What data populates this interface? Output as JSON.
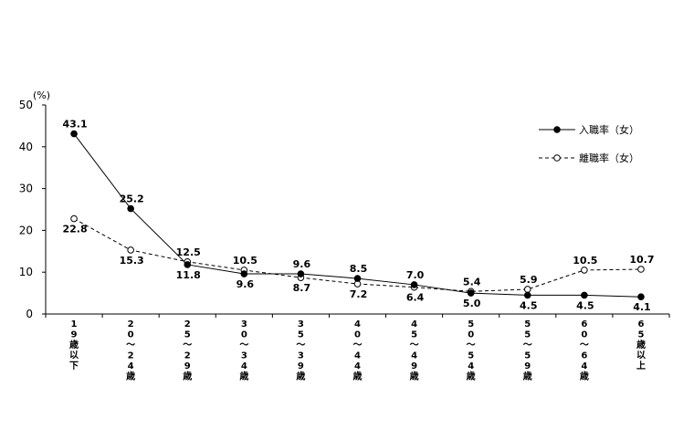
{
  "chart_data": {
    "type": "line",
    "unit_label": "(%)",
    "categories": [
      "19歳以下",
      "20〜24歳",
      "25〜29歳",
      "30〜34歳",
      "35〜39歳",
      "40〜44歳",
      "45〜49歳",
      "50〜54歳",
      "55〜59歳",
      "60〜64歳",
      "65歳以上"
    ],
    "category_labels": [
      [
        "1",
        "9",
        "歳",
        "以",
        "下"
      ],
      [
        "2",
        "0",
        "〜",
        "2",
        "4",
        "歳"
      ],
      [
        "2",
        "5",
        "〜",
        "2",
        "9",
        "歳"
      ],
      [
        "3",
        "0",
        "〜",
        "3",
        "4",
        "歳"
      ],
      [
        "3",
        "5",
        "〜",
        "3",
        "9",
        "歳"
      ],
      [
        "4",
        "0",
        "〜",
        "4",
        "4",
        "歳"
      ],
      [
        "4",
        "5",
        "〜",
        "4",
        "9",
        "歳"
      ],
      [
        "5",
        "0",
        "〜",
        "5",
        "4",
        "歳"
      ],
      [
        "5",
        "5",
        "〜",
        "5",
        "9",
        "歳"
      ],
      [
        "6",
        "0",
        "〜",
        "6",
        "4",
        "歳"
      ],
      [
        "6",
        "5",
        "歳",
        "以",
        "上"
      ]
    ],
    "ylim": [
      0,
      50
    ],
    "yticks": [
      0,
      10,
      20,
      30,
      40,
      50
    ],
    "legend_position": "top-right",
    "series": [
      {
        "name": "入職率（女）",
        "style": "solid",
        "marker": "filled-circle",
        "values": [
          43.1,
          25.2,
          11.8,
          9.6,
          9.6,
          8.5,
          7.0,
          5.0,
          4.5,
          4.5,
          4.1
        ],
        "labels": [
          "43.1",
          "25.2",
          "11.8",
          "9.6",
          "9.6",
          "8.5",
          "7.0",
          "5.0",
          "4.5",
          "4.5",
          "4.1"
        ]
      },
      {
        "name": "離職率（女）",
        "style": "dashed",
        "marker": "open-circle",
        "values": [
          22.8,
          15.3,
          12.5,
          10.5,
          8.7,
          7.2,
          6.4,
          5.4,
          5.9,
          10.5,
          10.7
        ],
        "labels": [
          "22.8",
          "15.3",
          "12.5",
          "10.5",
          "8.7",
          "7.2",
          "6.4",
          "5.4",
          "5.9",
          "10.5",
          "10.7"
        ]
      }
    ],
    "colors": {
      "line": "#000000",
      "open_marker_fill": "#ffffff"
    }
  }
}
